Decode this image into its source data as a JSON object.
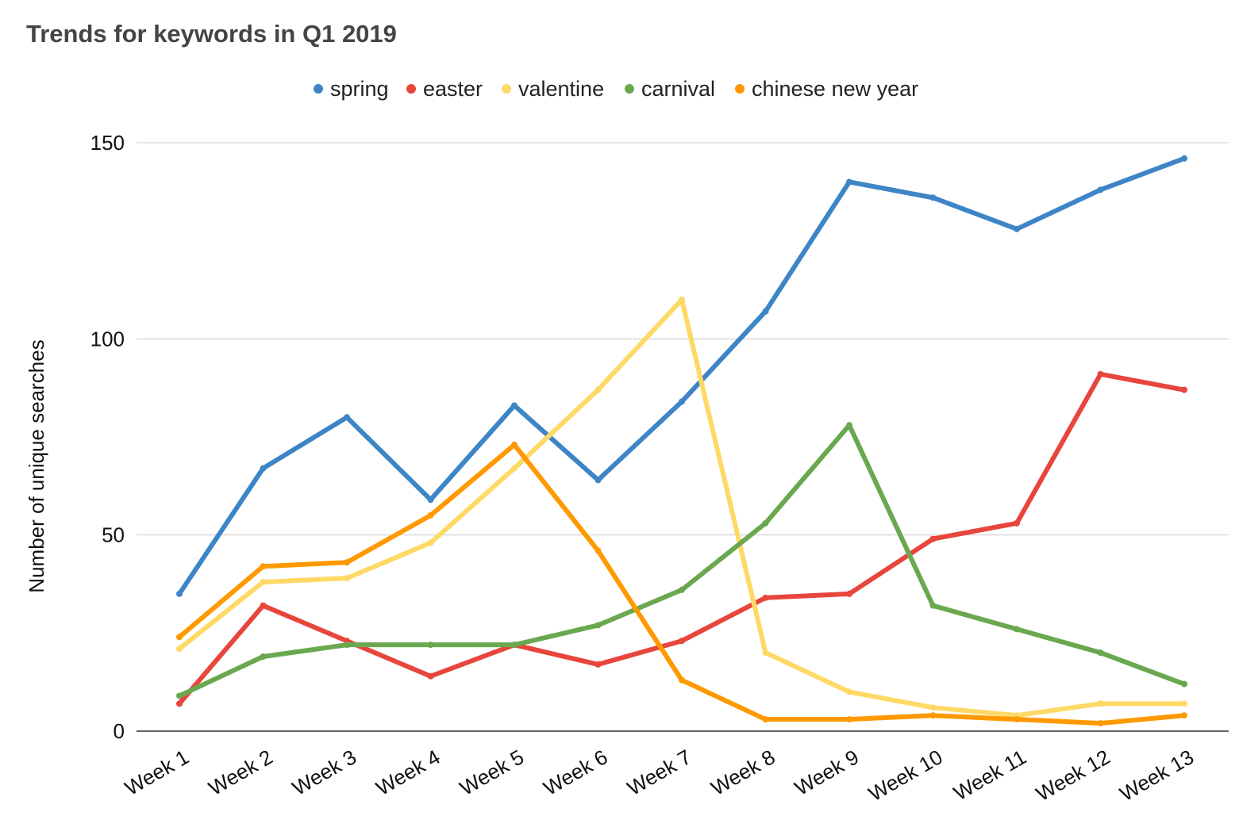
{
  "chart_data": {
    "type": "line",
    "title": "Trends for keywords in Q1 2019",
    "xlabel": "",
    "ylabel": "Number of unique searches",
    "ylim": [
      0,
      150
    ],
    "yticks": [
      0,
      50,
      100,
      150
    ],
    "grid": true,
    "legend_position": "top-center",
    "categories": [
      "Week 1",
      "Week 2",
      "Week 3",
      "Week 4",
      "Week 5",
      "Week 6",
      "Week 7",
      "Week 8",
      "Week 9",
      "Week 10",
      "Week 11",
      "Week 12",
      "Week 13"
    ],
    "series": [
      {
        "name": "spring",
        "color": "#3d85c6",
        "values": [
          35,
          67,
          80,
          59,
          83,
          64,
          84,
          107,
          140,
          136,
          128,
          138,
          146
        ]
      },
      {
        "name": "easter",
        "color": "#e8453c",
        "values": [
          7,
          32,
          23,
          14,
          22,
          17,
          23,
          34,
          35,
          49,
          53,
          91,
          87
        ]
      },
      {
        "name": "valentine",
        "color": "#ffd966",
        "values": [
          21,
          38,
          39,
          48,
          67,
          87,
          110,
          20,
          10,
          6,
          4,
          7,
          7
        ]
      },
      {
        "name": "carnival",
        "color": "#6aa84f",
        "values": [
          9,
          19,
          22,
          22,
          22,
          27,
          36,
          53,
          78,
          32,
          26,
          20,
          12
        ]
      },
      {
        "name": "chinese new year",
        "color": "#ff9900",
        "values": [
          24,
          42,
          43,
          55,
          73,
          46,
          13,
          3,
          3,
          4,
          3,
          2,
          4
        ]
      }
    ]
  }
}
